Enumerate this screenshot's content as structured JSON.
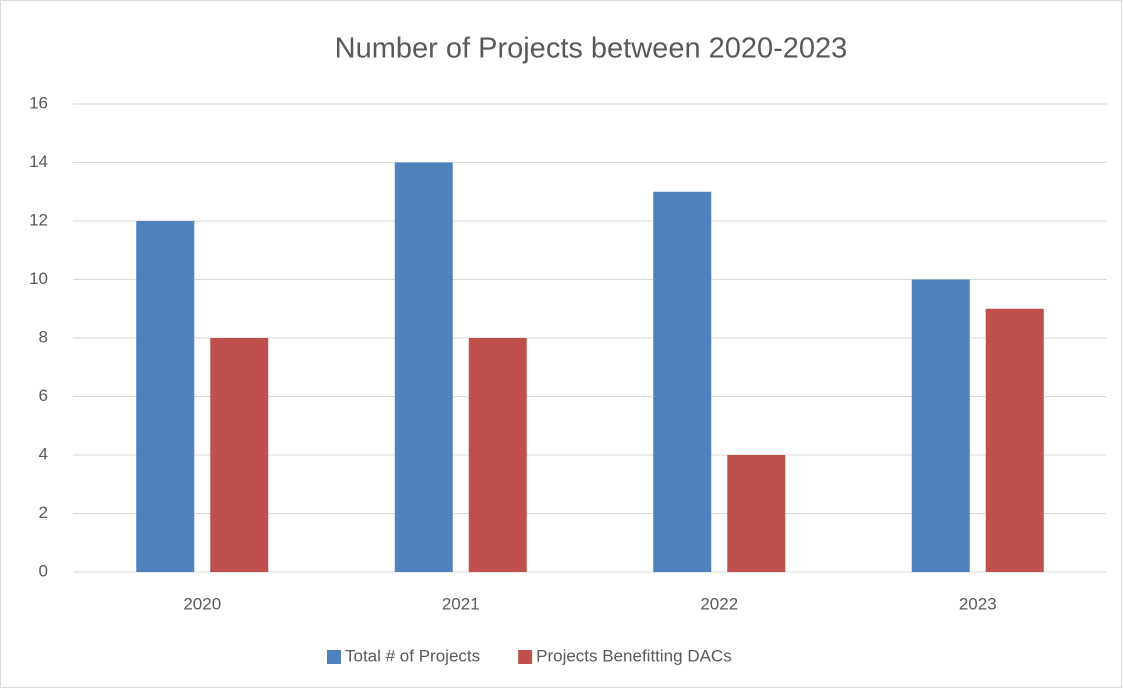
{
  "chart_data": {
    "type": "bar",
    "title": "Number of Projects between 2020-2023",
    "categories": [
      "2020",
      "2021",
      "2022",
      "2023"
    ],
    "series": [
      {
        "name": "Total # of Projects",
        "color": "#4f81bd",
        "values": [
          12,
          14,
          13,
          10
        ]
      },
      {
        "name": "Projects Benefitting DACs",
        "color": "#c0504d",
        "values": [
          8,
          8,
          4,
          9
        ]
      }
    ],
    "ylim": [
      0,
      16
    ],
    "yticks": [
      0,
      2,
      4,
      6,
      8,
      10,
      12,
      14,
      16
    ],
    "grid": true,
    "legend": "bottom"
  }
}
